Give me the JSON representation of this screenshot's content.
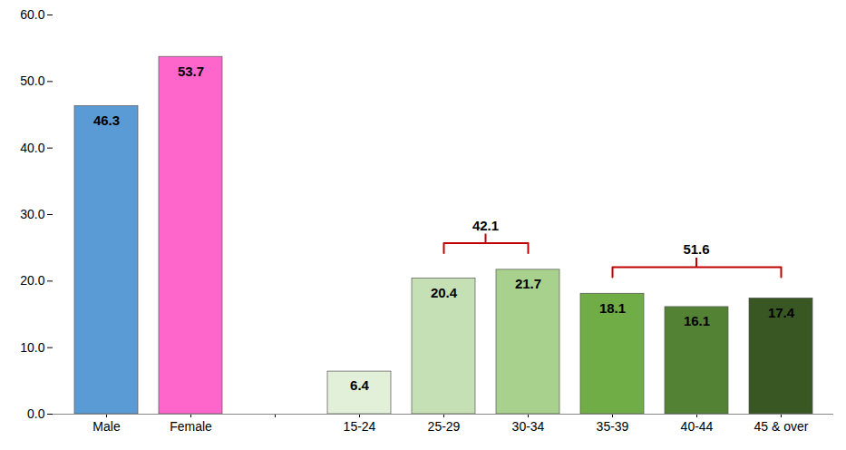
{
  "chart_data": {
    "type": "bar",
    "categories": [
      "Male",
      "Female",
      null,
      "15-24",
      "25-29",
      "30-34",
      "35-39",
      "40-44",
      "45 & over"
    ],
    "values": [
      46.3,
      53.7,
      null,
      6.4,
      20.4,
      21.7,
      18.1,
      16.1,
      17.4
    ],
    "colors": [
      "#5B9BD5",
      "#FF66CC",
      null,
      "#E2EFD9",
      "#C5E0B4",
      "#A9D18E",
      "#70AD47",
      "#548235",
      "#385723"
    ],
    "ylim": [
      0,
      60
    ],
    "yticks": [
      {
        "value": 0,
        "label": "0.0"
      },
      {
        "value": 10,
        "label": "10.0"
      },
      {
        "value": 20,
        "label": "20.0"
      },
      {
        "value": 30,
        "label": "30.0"
      },
      {
        "value": 40,
        "label": "40.0"
      },
      {
        "value": 50,
        "label": "50.0"
      },
      {
        "value": 60,
        "label": "60.0"
      }
    ],
    "grid": false,
    "data_labels": true,
    "annotations": [
      {
        "value": 42.1,
        "from": "25-29",
        "to": "30-34"
      },
      {
        "value": 51.6,
        "from": "35-39",
        "to": "45 & over"
      }
    ]
  }
}
